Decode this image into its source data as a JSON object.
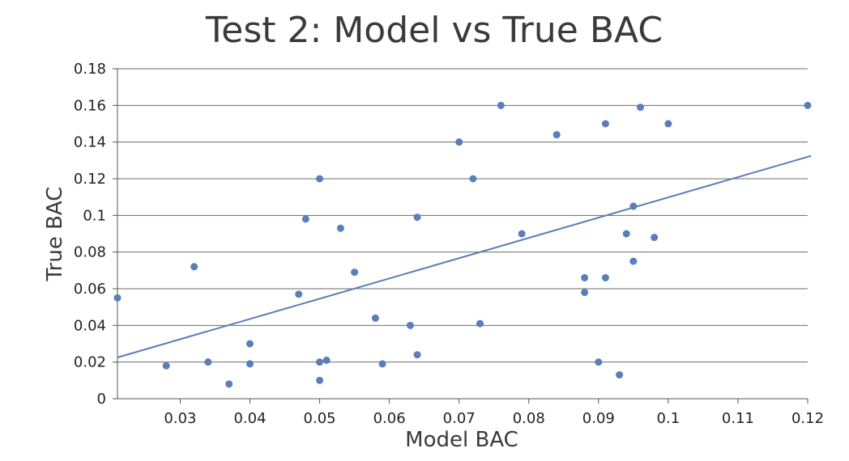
{
  "chart_data": {
    "type": "scatter",
    "title": "Test 2: Model vs True BAC",
    "xlabel": "Model BAC",
    "ylabel": "True BAC",
    "xlim": [
      0.021,
      0.12
    ],
    "ylim": [
      0,
      0.18
    ],
    "x_ticks": [
      0.03,
      0.04,
      0.05,
      0.06,
      0.07,
      0.08,
      0.09,
      0.1,
      0.11,
      0.12
    ],
    "x_tick_labels": [
      "0.03",
      "0.04",
      "0.05",
      "0.06",
      "0.07",
      "0.08",
      "0.09",
      "0.1",
      "0.11",
      "0.12"
    ],
    "y_ticks": [
      0,
      0.02,
      0.04,
      0.06,
      0.08,
      0.1,
      0.12,
      0.14,
      0.16,
      0.18
    ],
    "y_tick_labels": [
      "0",
      "0.02",
      "0.04",
      "0.06",
      "0.08",
      "0.1",
      "0.12",
      "0.14",
      "0.16",
      "0.18"
    ],
    "grid": "horizontal",
    "color": "#5B7DB8",
    "points": [
      [
        0.021,
        0.055
      ],
      [
        0.028,
        0.018
      ],
      [
        0.032,
        0.072
      ],
      [
        0.034,
        0.02
      ],
      [
        0.037,
        0.008
      ],
      [
        0.04,
        0.03
      ],
      [
        0.04,
        0.019
      ],
      [
        0.047,
        0.057
      ],
      [
        0.048,
        0.098
      ],
      [
        0.05,
        0.12
      ],
      [
        0.05,
        0.02
      ],
      [
        0.05,
        0.01
      ],
      [
        0.051,
        0.021
      ],
      [
        0.053,
        0.093
      ],
      [
        0.055,
        0.069
      ],
      [
        0.058,
        0.044
      ],
      [
        0.059,
        0.019
      ],
      [
        0.063,
        0.04
      ],
      [
        0.064,
        0.099
      ],
      [
        0.064,
        0.024
      ],
      [
        0.07,
        0.14
      ],
      [
        0.072,
        0.12
      ],
      [
        0.073,
        0.041
      ],
      [
        0.076,
        0.16
      ],
      [
        0.079,
        0.09
      ],
      [
        0.084,
        0.144
      ],
      [
        0.088,
        0.066
      ],
      [
        0.088,
        0.058
      ],
      [
        0.09,
        0.02
      ],
      [
        0.091,
        0.15
      ],
      [
        0.091,
        0.066
      ],
      [
        0.093,
        0.013
      ],
      [
        0.094,
        0.09
      ],
      [
        0.095,
        0.105
      ],
      [
        0.095,
        0.075
      ],
      [
        0.096,
        0.159
      ],
      [
        0.098,
        0.088
      ],
      [
        0.1,
        0.15
      ],
      [
        0.12,
        0.16
      ]
    ],
    "trendline": {
      "type": "linear",
      "x": [
        0.021,
        0.1205
      ],
      "y": [
        0.0225,
        0.1325
      ]
    }
  }
}
